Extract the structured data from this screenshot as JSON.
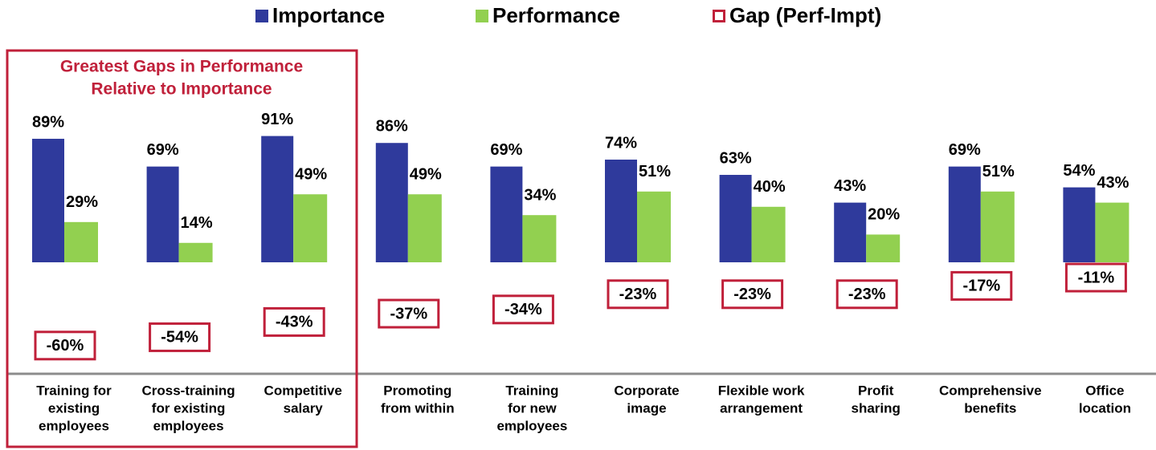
{
  "chart_data": {
    "type": "bar",
    "annotation": [
      "Greatest Gaps in Performance",
      "Relative to Importance"
    ],
    "categories": [
      [
        "Training for",
        "existing",
        "employees"
      ],
      [
        "Cross-training",
        "for existing",
        "employees"
      ],
      [
        "Competitive",
        "salary"
      ],
      [
        "Promoting",
        "from within"
      ],
      [
        "Training",
        "for new",
        "employees"
      ],
      [
        "Corporate",
        "image"
      ],
      [
        "Flexible work",
        "arrangement"
      ],
      [
        "Profit",
        "sharing"
      ],
      [
        "Comprehensive",
        "benefits"
      ],
      [
        "Office",
        "location"
      ]
    ],
    "series": [
      {
        "name": "Importance",
        "color": "#2f3a9c",
        "values": [
          89,
          69,
          91,
          86,
          69,
          74,
          63,
          43,
          69,
          54
        ],
        "value_labels": [
          "89%",
          "69%",
          "91%",
          "86%",
          "69%",
          "74%",
          "63%",
          "43%",
          "69%",
          "54%"
        ]
      },
      {
        "name": "Performance",
        "color": "#92d050",
        "values": [
          29,
          14,
          49,
          49,
          34,
          51,
          40,
          20,
          51,
          43
        ],
        "value_labels": [
          "29%",
          "14%",
          "49%",
          "49%",
          "34%",
          "51%",
          "40%",
          "20%",
          "51%",
          "43%"
        ]
      },
      {
        "name": "Gap (Perf-Impt)",
        "color": "#c0203a",
        "values": [
          -60,
          -54,
          -43,
          -37,
          -34,
          -23,
          -23,
          -23,
          -17,
          -11
        ],
        "value_labels": [
          "-60%",
          "-54%",
          "-43%",
          "-37%",
          "-34%",
          "-23%",
          "-23%",
          "-23%",
          "-17%",
          "-11%"
        ]
      }
    ]
  }
}
